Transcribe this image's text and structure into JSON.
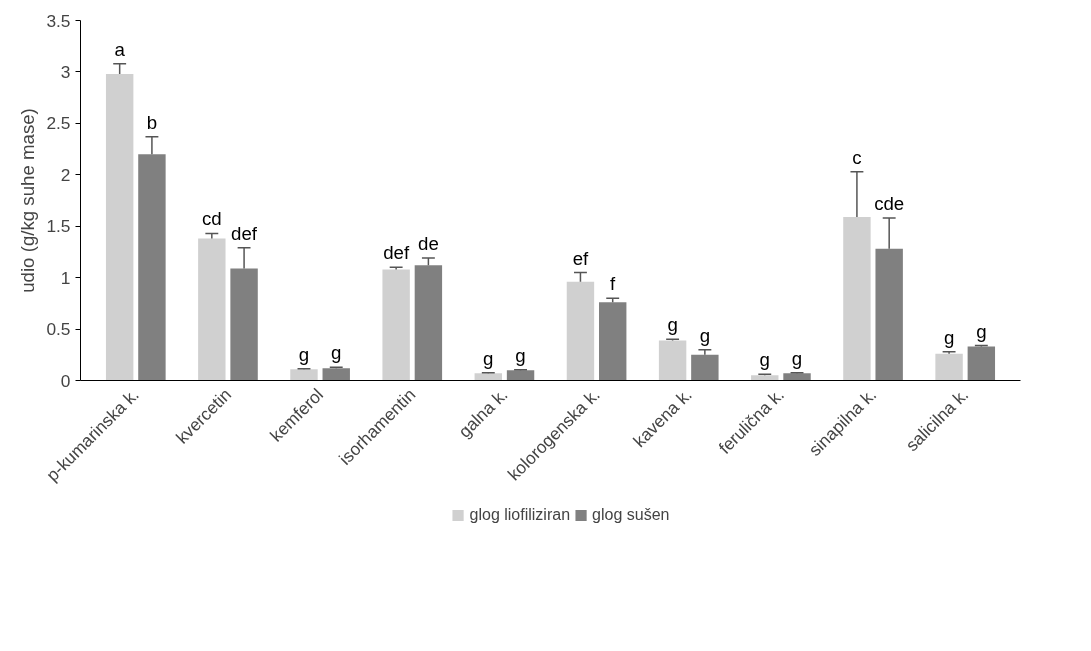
{
  "chart_data": {
    "type": "bar",
    "ylabel": "udio (g/kg suhe mase)",
    "categories": [
      "p-kumarinska k.",
      "kvercetin",
      "kemferol",
      "isorhamentin",
      "galna k.",
      "kolorogenska k.",
      "kavena k.",
      "ferulična k.",
      "sinapilna k.",
      "salicilna k."
    ],
    "series": [
      {
        "name": "glog liofiliziran",
        "color": "#d0d0d0",
        "values": [
          2.98,
          1.38,
          0.11,
          1.08,
          0.07,
          0.96,
          0.39,
          0.05,
          1.59,
          0.26
        ],
        "errors": [
          [
            2.98,
            3.08
          ],
          [
            1.38,
            1.43
          ],
          [
            0.11,
            0.115
          ],
          [
            1.08,
            1.1
          ],
          [
            0.07,
            0.075
          ],
          [
            0.96,
            1.05
          ],
          [
            0.39,
            0.4
          ],
          [
            0.05,
            0.06
          ],
          [
            1.59,
            2.03
          ],
          [
            0.26,
            0.28
          ]
        ],
        "value_labels": [
          "a",
          "cd",
          "g",
          "def",
          "g",
          "ef",
          "g",
          "g",
          "c",
          "g"
        ]
      },
      {
        "name": "glog sušen",
        "color": "#808080",
        "values": [
          2.2,
          1.09,
          0.12,
          1.12,
          0.1,
          0.76,
          0.25,
          0.07,
          1.28,
          0.33
        ],
        "errors": [
          [
            2.2,
            2.37
          ],
          [
            1.09,
            1.29
          ],
          [
            0.12,
            0.13
          ],
          [
            1.12,
            1.19
          ],
          [
            0.1,
            0.105
          ],
          [
            0.76,
            0.8
          ],
          [
            0.25,
            0.3
          ],
          [
            0.07,
            0.075
          ],
          [
            1.28,
            1.58
          ],
          [
            0.33,
            0.34
          ]
        ],
        "value_labels": [
          "b",
          "def",
          "g",
          "de",
          "g",
          "f",
          "g",
          "g",
          "cde",
          "g"
        ]
      }
    ],
    "ylim": [
      0,
      3.5
    ],
    "yticks": [
      0,
      0.5,
      1,
      1.5,
      2,
      2.5,
      3,
      3.5
    ],
    "grid": false,
    "legend": "bottom"
  }
}
